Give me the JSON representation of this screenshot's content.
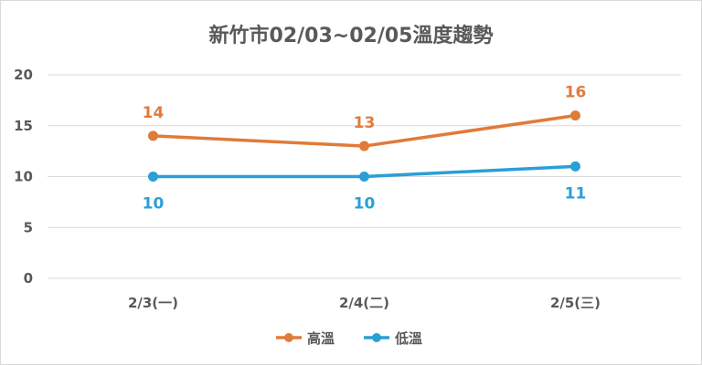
{
  "chart_data": {
    "type": "line",
    "title": "新竹市02/03~02/05溫度趨勢",
    "categories": [
      "2/3(一)",
      "2/4(二)",
      "2/5(三)"
    ],
    "series": [
      {
        "name": "高溫",
        "values": [
          14,
          13,
          16
        ],
        "color": "#e07b39"
      },
      {
        "name": "低溫",
        "values": [
          10,
          10,
          11
        ],
        "color": "#2a9fd6"
      }
    ],
    "ylim": [
      0,
      20
    ],
    "yticks": [
      0,
      5,
      10,
      15,
      20
    ],
    "grid": true,
    "legend_position": "bottom"
  }
}
